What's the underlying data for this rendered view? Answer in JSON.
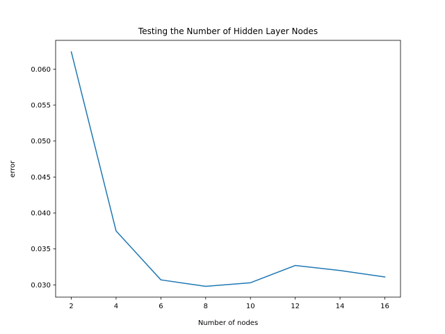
{
  "chart_data": {
    "type": "line",
    "title": "Testing the Number of Hidden Layer Nodes",
    "xlabel": "Number of nodes",
    "ylabel": "error",
    "x": [
      2,
      4,
      6,
      8,
      10,
      12,
      14,
      16
    ],
    "series": [
      {
        "values": [
          0.0624,
          0.0375,
          0.0307,
          0.0298,
          0.0303,
          0.0327,
          0.032,
          0.0311
        ],
        "color": "#1f77b4"
      }
    ],
    "xlim": [
      1.3,
      16.7
    ],
    "ylim": [
      0.0283,
      0.064
    ],
    "xticks": [
      2,
      4,
      6,
      8,
      10,
      12,
      14,
      16
    ],
    "xtick_labels": [
      "2",
      "4",
      "6",
      "8",
      "10",
      "12",
      "14",
      "16"
    ],
    "yticks": [
      0.03,
      0.035,
      0.04,
      0.045,
      0.05,
      0.055,
      0.06
    ],
    "ytick_labels": [
      "0.030",
      "0.035",
      "0.040",
      "0.045",
      "0.050",
      "0.055",
      "0.060"
    ],
    "grid": false,
    "legend": "none"
  }
}
